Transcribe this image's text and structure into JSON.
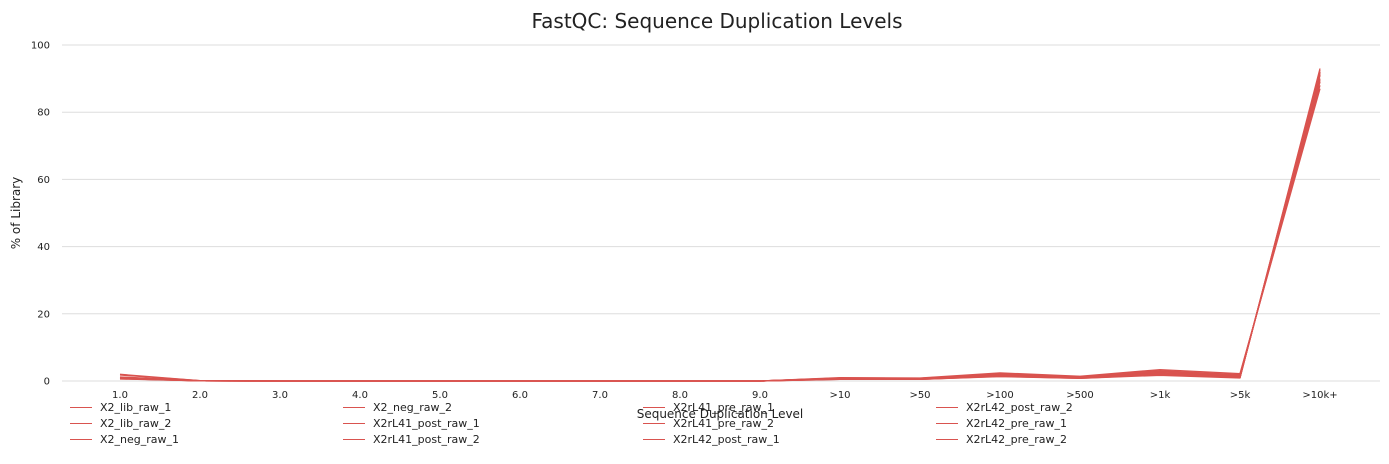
{
  "chart_data": {
    "type": "line",
    "title": "FastQC: Sequence Duplication Levels",
    "xlabel": "Sequence Duplication Level",
    "ylabel": "% of Library",
    "categories": [
      "1.0",
      "2.0",
      "3.0",
      "4.0",
      "5.0",
      "6.0",
      "7.0",
      "8.0",
      "9.0",
      ">10",
      ">50",
      ">100",
      ">500",
      ">1k",
      ">5k",
      ">10k+"
    ],
    "ylim": [
      0,
      100
    ],
    "yticks": [
      0,
      20,
      40,
      60,
      80,
      100
    ],
    "grid": true,
    "legend_position": "bottom",
    "series_color": "#d9534f",
    "series": [
      {
        "name": "X2_lib_raw_1",
        "values": [
          2.0,
          0.1,
          0,
          0,
          0,
          0,
          0,
          0,
          0,
          1.0,
          0.9,
          2.4,
          1.4,
          3.4,
          2.2,
          87
        ]
      },
      {
        "name": "X2_lib_raw_2",
        "values": [
          1.8,
          0.1,
          0,
          0,
          0,
          0,
          0,
          0,
          0,
          0.9,
          0.8,
          2.1,
          1.3,
          3.0,
          1.9,
          88
        ]
      },
      {
        "name": "X2_neg_raw_1",
        "values": [
          1.2,
          0.05,
          0,
          0,
          0,
          0,
          0,
          0,
          0,
          0.5,
          0.5,
          1.4,
          0.8,
          1.9,
          1.0,
          92
        ]
      },
      {
        "name": "X2_neg_raw_2",
        "values": [
          1.1,
          0.05,
          0,
          0,
          0,
          0,
          0,
          0,
          0,
          0.5,
          0.5,
          1.3,
          0.8,
          1.7,
          0.9,
          93
        ]
      },
      {
        "name": "X2rL41_post_raw_1",
        "values": [
          0.9,
          0.05,
          0,
          0,
          0,
          0,
          0,
          0,
          0,
          0.8,
          0.7,
          2.0,
          1.2,
          2.7,
          1.5,
          90
        ]
      },
      {
        "name": "X2rL41_post_raw_2",
        "values": [
          0.8,
          0.05,
          0,
          0,
          0,
          0,
          0,
          0,
          0,
          0.7,
          0.6,
          1.8,
          1.1,
          2.4,
          1.3,
          91
        ]
      },
      {
        "name": "X2rL41_pre_raw_1",
        "values": [
          0.7,
          0.05,
          0,
          0,
          0,
          0,
          0,
          0,
          0,
          0.6,
          0.6,
          1.6,
          0.9,
          2.1,
          1.1,
          92
        ]
      },
      {
        "name": "X2rL41_pre_raw_2",
        "values": [
          0.6,
          0.05,
          0,
          0,
          0,
          0,
          0,
          0,
          0,
          0.6,
          0.5,
          1.5,
          0.9,
          2.0,
          1.0,
          92.5
        ]
      },
      {
        "name": "X2rL42_post_raw_1",
        "values": [
          1.0,
          0.05,
          0,
          0,
          0,
          0,
          0,
          0,
          0,
          0.9,
          0.8,
          2.2,
          1.3,
          3.1,
          1.8,
          89
        ]
      },
      {
        "name": "X2rL42_post_raw_2",
        "values": [
          0.9,
          0.05,
          0,
          0,
          0,
          0,
          0,
          0,
          0,
          0.8,
          0.7,
          2.0,
          1.2,
          2.8,
          1.6,
          89.5
        ]
      },
      {
        "name": "X2rL42_pre_raw_1",
        "values": [
          0.8,
          0.05,
          0,
          0,
          0,
          0,
          0,
          0,
          0,
          0.7,
          0.6,
          1.7,
          1.0,
          2.3,
          1.2,
          91
        ]
      },
      {
        "name": "X2rL42_pre_raw_2",
        "values": [
          0.7,
          0.05,
          0,
          0,
          0,
          0,
          0,
          0,
          0,
          0.6,
          0.6,
          1.6,
          1.0,
          2.2,
          1.1,
          91.5
        ]
      }
    ]
  }
}
